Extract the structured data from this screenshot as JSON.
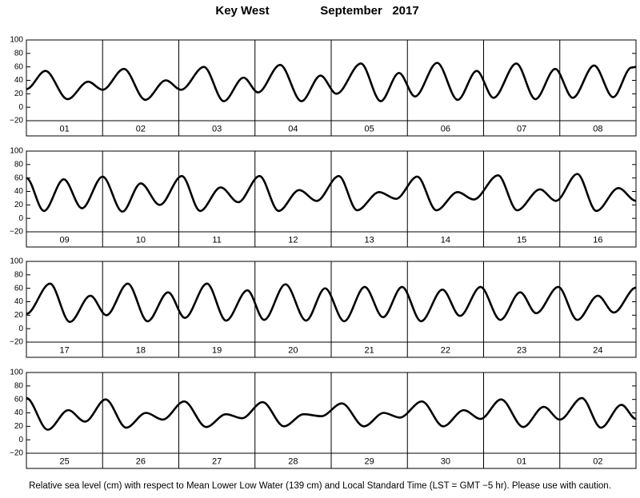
{
  "header": {
    "location": "Key West",
    "month": "September   2017"
  },
  "footnote": "Relative sea level (cm) with respect to Mean Lower Low Water (139 cm) and Local Standard Time (LST = GMT −5 hr). Please use with caution.",
  "chart_data": [
    {
      "type": "line",
      "color": "#000000",
      "xlim": [
        0,
        8
      ],
      "ylim": [
        -20,
        100
      ],
      "yticks": [
        {
          "value": -20,
          "label": "−20"
        },
        0,
        20,
        40,
        60,
        80,
        100
      ],
      "xticks": [
        {
          "value": 0.5,
          "label": "01"
        },
        {
          "value": 1.5,
          "label": "02"
        },
        {
          "value": 2.5,
          "label": "03"
        },
        {
          "value": 3.5,
          "label": "04"
        },
        {
          "value": 4.5,
          "label": "05"
        },
        {
          "value": 5.5,
          "label": "06"
        },
        {
          "value": 6.5,
          "label": "07"
        },
        {
          "value": 7.5,
          "label": "08"
        }
      ],
      "x": [
        0,
        0.25,
        0.54,
        0.81,
        1.0,
        1.28,
        1.56,
        1.83,
        2.03,
        2.33,
        2.59,
        2.85,
        3.04,
        3.33,
        3.61,
        3.86,
        4.07,
        4.39,
        4.65,
        4.89,
        5.1,
        5.39,
        5.66,
        5.91,
        6.13,
        6.43,
        6.68,
        6.94,
        7.17,
        7.45,
        7.7,
        7.94,
        8.0
      ],
      "series": [
        {
          "values": [
            27,
            54,
            12,
            38,
            26,
            57,
            11,
            40,
            26,
            60,
            9,
            44,
            22,
            63,
            9,
            47,
            20,
            65,
            9,
            51,
            16,
            66,
            11,
            54,
            14,
            65,
            12,
            57,
            14,
            62,
            15,
            59,
            60
          ]
        }
      ]
    },
    {
      "type": "line",
      "color": "#000000",
      "xlim": [
        0,
        8
      ],
      "ylim": [
        -20,
        100
      ],
      "yticks": [
        {
          "value": -20,
          "label": "−20"
        },
        0,
        20,
        40,
        60,
        80,
        100
      ],
      "xticks": [
        {
          "value": 0.5,
          "label": "09"
        },
        {
          "value": 1.5,
          "label": "10"
        },
        {
          "value": 2.5,
          "label": "11"
        },
        {
          "value": 3.5,
          "label": "12"
        },
        {
          "value": 4.5,
          "label": "13"
        },
        {
          "value": 5.5,
          "label": "14"
        },
        {
          "value": 6.5,
          "label": "15"
        },
        {
          "value": 7.5,
          "label": "16"
        }
      ],
      "x": [
        0,
        0.23,
        0.49,
        0.73,
        1.0,
        1.26,
        1.5,
        1.75,
        2.04,
        2.28,
        2.55,
        2.78,
        3.06,
        3.31,
        3.58,
        3.81,
        4.1,
        4.34,
        4.63,
        4.85,
        5.13,
        5.38,
        5.66,
        5.87,
        6.19,
        6.44,
        6.74,
        6.95,
        7.23,
        7.48,
        7.77,
        8.0
      ],
      "series": [
        {
          "values": [
            60,
            11,
            58,
            15,
            62,
            10,
            52,
            20,
            63,
            11,
            46,
            24,
            63,
            11,
            42,
            26,
            63,
            12,
            39,
            29,
            62,
            12,
            39,
            28,
            64,
            12,
            43,
            26,
            66,
            11,
            45,
            26
          ]
        }
      ]
    },
    {
      "type": "line",
      "color": "#000000",
      "xlim": [
        0,
        8
      ],
      "ylim": [
        -20,
        100
      ],
      "yticks": [
        {
          "value": -20,
          "label": "−20"
        },
        0,
        20,
        40,
        60,
        80,
        100
      ],
      "xticks": [
        {
          "value": 0.5,
          "label": "17"
        },
        {
          "value": 1.5,
          "label": "18"
        },
        {
          "value": 2.5,
          "label": "19"
        },
        {
          "value": 3.5,
          "label": "20"
        },
        {
          "value": 4.5,
          "label": "21"
        },
        {
          "value": 5.5,
          "label": "22"
        },
        {
          "value": 6.5,
          "label": "23"
        },
        {
          "value": 7.5,
          "label": "24"
        }
      ],
      "x": [
        0,
        0.31,
        0.57,
        0.84,
        1.05,
        1.33,
        1.59,
        1.86,
        2.08,
        2.37,
        2.62,
        2.9,
        3.12,
        3.4,
        3.67,
        3.92,
        4.17,
        4.44,
        4.68,
        4.93,
        5.18,
        5.46,
        5.69,
        5.96,
        6.22,
        6.48,
        6.69,
        6.98,
        7.23,
        7.5,
        7.71,
        8.0
      ],
      "series": [
        {
          "values": [
            22,
            67,
            10,
            49,
            20,
            67,
            11,
            54,
            16,
            67,
            12,
            57,
            13,
            66,
            12,
            60,
            11,
            62,
            17,
            62,
            11,
            58,
            19,
            62,
            13,
            54,
            23,
            62,
            13,
            49,
            24,
            61
          ]
        }
      ]
    },
    {
      "type": "line",
      "color": "#000000",
      "xlim": [
        0,
        8
      ],
      "ylim": [
        -20,
        100
      ],
      "yticks": [
        {
          "value": -20,
          "label": "−20"
        },
        0,
        20,
        40,
        60,
        80,
        100
      ],
      "xticks": [
        {
          "value": 0.5,
          "label": "25"
        },
        {
          "value": 1.5,
          "label": "26"
        },
        {
          "value": 2.5,
          "label": "27"
        },
        {
          "value": 3.5,
          "label": "28"
        },
        {
          "value": 4.5,
          "label": "29"
        },
        {
          "value": 5.5,
          "label": "30"
        },
        {
          "value": 6.5,
          "label": "01"
        },
        {
          "value": 7.5,
          "label": "02"
        }
      ],
      "x": [
        0,
        0.28,
        0.55,
        0.77,
        1.04,
        1.31,
        1.57,
        1.79,
        2.07,
        2.36,
        2.62,
        2.83,
        3.1,
        3.38,
        3.64,
        3.87,
        4.14,
        4.43,
        4.69,
        4.9,
        5.19,
        5.47,
        5.74,
        5.96,
        6.23,
        6.52,
        6.79,
        7.0,
        7.29,
        7.54,
        7.81,
        8.0
      ],
      "series": [
        {
          "values": [
            62,
            15,
            44,
            27,
            60,
            18,
            40,
            30,
            57,
            19,
            38,
            32,
            56,
            20,
            38,
            35,
            54,
            20,
            40,
            33,
            57,
            20,
            44,
            31,
            60,
            19,
            49,
            30,
            62,
            18,
            52,
            31
          ]
        }
      ]
    }
  ]
}
